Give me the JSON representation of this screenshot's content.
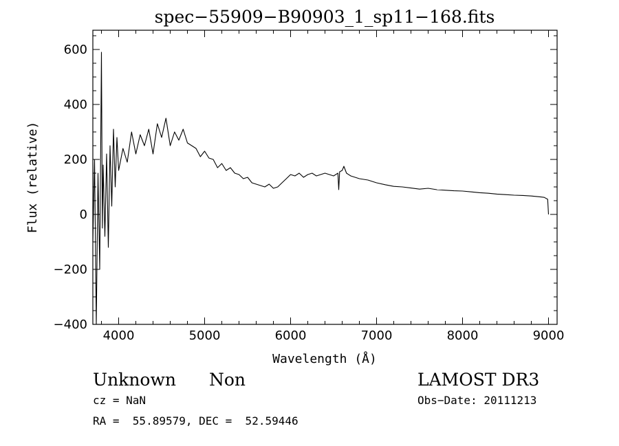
{
  "chart_data": {
    "type": "line",
    "title": "spec−55909−B90903_1_sp11−168.fits",
    "xlabel": "Wavelength (Å)",
    "ylabel": "Flux (relative)",
    "xlim": [
      3700,
      9100
    ],
    "ylim": [
      -400,
      670
    ],
    "xticks": [
      4000,
      5000,
      6000,
      7000,
      8000,
      9000
    ],
    "xtick_labels": [
      "4000",
      "5000",
      "6000",
      "7000",
      "8000",
      "9000"
    ],
    "yticks": [
      -400,
      -200,
      0,
      200,
      400,
      600
    ],
    "ytick_labels": [
      "−400",
      "−200",
      "0",
      "200",
      "400",
      "600"
    ],
    "grid": false,
    "series": [
      {
        "name": "flux",
        "x": [
          3700,
          3720,
          3740,
          3760,
          3780,
          3800,
          3810,
          3820,
          3840,
          3860,
          3880,
          3900,
          3920,
          3940,
          3960,
          3980,
          4000,
          4050,
          4100,
          4150,
          4200,
          4250,
          4300,
          4350,
          4400,
          4450,
          4500,
          4550,
          4600,
          4650,
          4700,
          4750,
          4800,
          4850,
          4900,
          4950,
          5000,
          5050,
          5100,
          5150,
          5200,
          5250,
          5300,
          5350,
          5400,
          5450,
          5500,
          5550,
          5600,
          5650,
          5700,
          5750,
          5800,
          5850,
          5900,
          5950,
          6000,
          6050,
          6100,
          6150,
          6200,
          6250,
          6300,
          6350,
          6400,
          6450,
          6500,
          6550,
          6560,
          6570,
          6600,
          6620,
          6650,
          6700,
          6750,
          6800,
          6900,
          7000,
          7100,
          7200,
          7300,
          7400,
          7500,
          7600,
          7700,
          7800,
          7900,
          8000,
          8100,
          8200,
          8300,
          8400,
          8500,
          8600,
          8700,
          8800,
          8900,
          8950,
          8990,
          9000
        ],
        "y": [
          -100,
          200,
          -400,
          150,
          -200,
          590,
          -50,
          180,
          -80,
          220,
          -120,
          250,
          30,
          310,
          100,
          280,
          160,
          240,
          190,
          300,
          220,
          290,
          250,
          310,
          220,
          330,
          280,
          350,
          250,
          300,
          270,
          310,
          260,
          250,
          240,
          210,
          230,
          205,
          200,
          170,
          185,
          160,
          170,
          150,
          145,
          130,
          135,
          115,
          110,
          105,
          100,
          110,
          95,
          100,
          115,
          130,
          145,
          140,
          150,
          135,
          145,
          150,
          140,
          145,
          150,
          145,
          140,
          150,
          90,
          155,
          160,
          175,
          150,
          140,
          135,
          130,
          125,
          115,
          108,
          102,
          100,
          96,
          92,
          95,
          90,
          88,
          86,
          85,
          82,
          79,
          77,
          74,
          72,
          70,
          69,
          67,
          64,
          62,
          55,
          0
        ]
      }
    ],
    "annotations": {
      "object_class": "Unknown",
      "object_subclass": "Non",
      "survey": "LAMOST DR3",
      "cz": "cz = NaN",
      "obs_date": "Obs−Date: 20111213",
      "coords": "RA =  55.89579, DEC =  52.59446"
    }
  }
}
